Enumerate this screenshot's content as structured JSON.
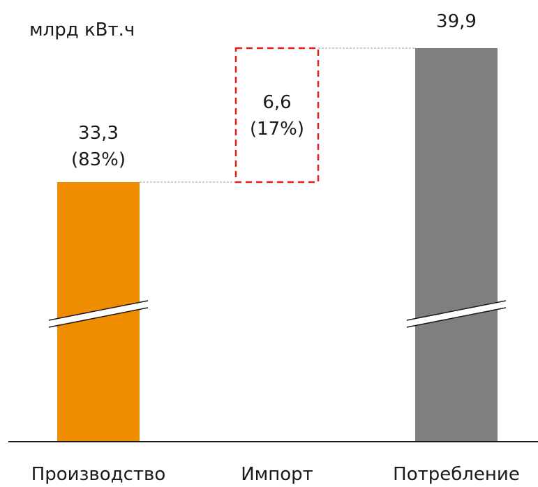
{
  "chart_data": {
    "type": "bar",
    "style": "waterfall",
    "unit": "млрд кВт.ч",
    "categories": [
      "Производство",
      "Импорт",
      "Потребление"
    ],
    "values": [
      33.3,
      6.6,
      39.9
    ],
    "value_labels": [
      "33,3",
      "6,6",
      "39,9"
    ],
    "share_labels": [
      "(83%)",
      "(17%)",
      ""
    ],
    "kinds": [
      "absolute",
      "increment",
      "total"
    ],
    "axis_break": true,
    "colors": [
      "#ef8c00",
      "#e0201b",
      "#7f7f7f"
    ],
    "grid": false,
    "legend": "none"
  }
}
